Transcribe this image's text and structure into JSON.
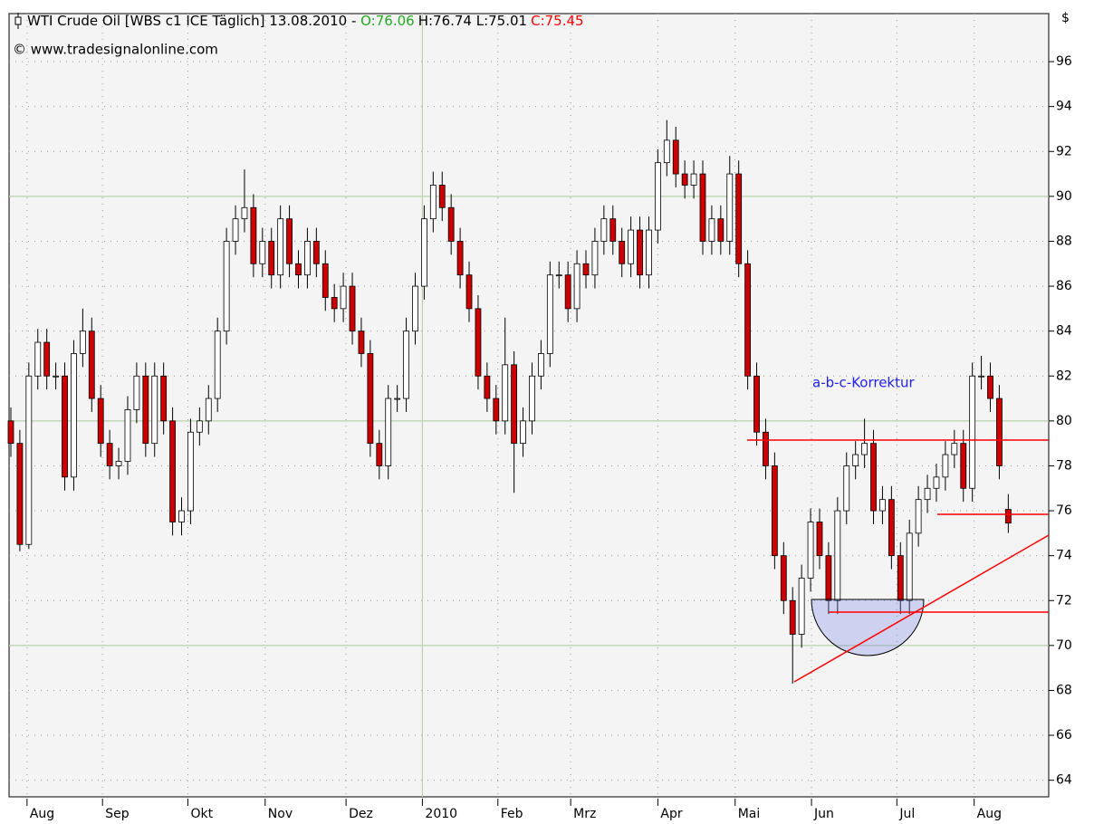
{
  "chart_data": {
    "type": "candlestick",
    "title": "WTI Crude Oil [WBS c1 ICE  Täglich] 13.08.2010 - ",
    "quote": {
      "open": "O:76.06",
      "high_low": "H:76.74 L:75.01",
      "close": "C:75.45"
    },
    "subtitle": "© www.tradesignalonline.com",
    "y_axis_label": "$",
    "annotation": "a-b-c-Korrektur",
    "up_color": "#ffffff",
    "down_color": "#cc0000",
    "open": [
      80,
      79,
      74.5,
      82,
      83.5,
      82,
      82,
      77.5,
      83,
      84,
      81,
      79,
      78,
      78.2,
      80.5,
      82,
      79,
      82,
      80,
      75.5,
      76,
      79.5,
      80,
      81,
      84,
      88,
      89,
      89.5,
      87,
      88,
      86.5,
      89,
      87,
      86.5,
      88,
      87,
      85.5,
      85,
      86,
      84,
      83,
      79,
      78,
      81,
      81,
      84,
      86,
      89,
      90.5,
      89.5,
      88,
      86.5,
      85,
      82,
      81,
      80,
      82.5,
      79,
      80,
      82,
      83,
      86.5,
      86.5,
      85,
      87,
      86.5,
      88,
      89,
      88,
      87,
      88.5,
      86.5,
      88.5,
      91.5,
      92.5,
      91,
      90.5,
      91,
      88,
      89,
      88,
      91,
      87,
      82,
      79.5,
      78,
      74,
      72,
      70.5,
      73,
      75.5,
      74,
      72,
      76,
      78,
      78.5,
      79,
      76,
      76.5,
      74,
      72,
      75,
      76.5,
      77,
      77.5,
      78.5,
      79,
      77,
      82,
      82,
      81,
      76.06
    ],
    "high": [
      80.6,
      79.6,
      82.6,
      84.1,
      84.1,
      82.6,
      82.6,
      83.6,
      85.0,
      84.6,
      81.6,
      79.6,
      78.8,
      81.1,
      82.6,
      82.6,
      82.6,
      82.6,
      80.6,
      76.6,
      80.1,
      80.6,
      81.6,
      84.6,
      88.6,
      89.6,
      91.2,
      90.1,
      88.6,
      88.6,
      89.6,
      89.6,
      87.6,
      88.6,
      88.6,
      87.6,
      86.1,
      86.6,
      86.6,
      84.6,
      83.6,
      79.6,
      81.6,
      81.6,
      84.6,
      86.6,
      89.6,
      91.1,
      91.1,
      90.1,
      88.6,
      87.1,
      85.6,
      82.6,
      81.6,
      84.6,
      83.1,
      80.6,
      82.6,
      83.6,
      87.1,
      87.1,
      87.1,
      87.6,
      87.6,
      88.6,
      89.6,
      89.6,
      88.6,
      89.1,
      89.1,
      89.1,
      92.1,
      93.4,
      93.1,
      91.6,
      91.6,
      91.6,
      89.6,
      89.6,
      91.8,
      91.6,
      87.6,
      82.6,
      80.1,
      78.6,
      74.6,
      72.6,
      73.6,
      76.1,
      76.1,
      74.6,
      76.6,
      78.6,
      79.1,
      80.1,
      79.6,
      77.1,
      77.1,
      74.6,
      75.6,
      77.1,
      77.6,
      78.1,
      79.1,
      79.6,
      79.6,
      82.6,
      82.9,
      82.6,
      81.6,
      76.74
    ],
    "low": [
      78.4,
      74.2,
      74.3,
      81.4,
      81.4,
      81.4,
      76.9,
      76.9,
      82.4,
      80.4,
      78.4,
      77.4,
      77.4,
      77.6,
      79.9,
      78.4,
      78.4,
      79.4,
      74.9,
      74.9,
      75.4,
      78.9,
      79.4,
      80.4,
      83.4,
      87.4,
      88.4,
      86.4,
      86.4,
      85.9,
      85.9,
      86.4,
      85.9,
      85.9,
      86.4,
      84.9,
      84.4,
      84.4,
      83.4,
      82.4,
      78.4,
      77.4,
      77.4,
      80.4,
      80.4,
      83.4,
      85.4,
      88.4,
      88.9,
      87.4,
      85.9,
      84.4,
      81.4,
      80.4,
      79.4,
      79.4,
      76.8,
      78.4,
      79.4,
      81.4,
      82.4,
      85.9,
      84.4,
      84.4,
      85.9,
      85.9,
      87.4,
      87.4,
      86.4,
      86.4,
      85.9,
      85.9,
      87.9,
      90.9,
      90.4,
      89.9,
      89.9,
      87.4,
      87.4,
      87.4,
      87.4,
      86.4,
      81.4,
      78.9,
      77.4,
      73.4,
      71.4,
      68.3,
      69.9,
      72.4,
      73.4,
      71.4,
      71.4,
      75.4,
      77.4,
      77.9,
      75.4,
      75.4,
      73.4,
      71.4,
      71.4,
      74.4,
      75.9,
      76.4,
      76.9,
      77.9,
      76.4,
      76.4,
      81.4,
      80.4,
      77.4,
      75.01
    ],
    "close": [
      79,
      74.5,
      82,
      83.5,
      82,
      82,
      77.5,
      83,
      84,
      81,
      79,
      78,
      78.2,
      80.5,
      82,
      79,
      82,
      80,
      75.5,
      76,
      79.5,
      80,
      81,
      84,
      88,
      89,
      89.5,
      87,
      88,
      86.5,
      89,
      87,
      86.5,
      88,
      87,
      85.5,
      85,
      86,
      84,
      83,
      79,
      78,
      81,
      81,
      84,
      86,
      89,
      90.5,
      89.5,
      88,
      86.5,
      85,
      82,
      81,
      80,
      82.5,
      79,
      80,
      82,
      83,
      86.5,
      86.5,
      85,
      87,
      86.5,
      88,
      89,
      88,
      87,
      88.5,
      86.5,
      88.5,
      91.5,
      92.5,
      91,
      90.5,
      91,
      88,
      89,
      88,
      91,
      87,
      82,
      79.5,
      78,
      74,
      72,
      70.5,
      73,
      75.5,
      74,
      72,
      76,
      78,
      78.5,
      79,
      76,
      76.5,
      74,
      72,
      75,
      76.5,
      77,
      77.5,
      78.5,
      79,
      77,
      82,
      82,
      81,
      78,
      75.45
    ],
    "xlim": [
      -0.2,
      115.5
    ],
    "xticks": [
      {
        "value": 1.8,
        "label": "Aug"
      },
      {
        "value": 10.2,
        "label": "Sep"
      },
      {
        "value": 19.7,
        "label": "Okt"
      },
      {
        "value": 28.3,
        "label": "Nov"
      },
      {
        "value": 37.3,
        "label": "Dez"
      },
      {
        "value": 45.8,
        "label": "2010"
      },
      {
        "value": 54.2,
        "label": "Feb"
      },
      {
        "value": 62.3,
        "label": "Mrz"
      },
      {
        "value": 72,
        "label": "Apr"
      },
      {
        "value": 80.6,
        "label": "Mai"
      },
      {
        "value": 89.1,
        "label": "Jun"
      },
      {
        "value": 98.6,
        "label": "Jul"
      },
      {
        "value": 107.2,
        "label": "Aug"
      }
    ],
    "ylim": [
      63.26,
      98.14
    ],
    "yticks": [
      64,
      66,
      68,
      70,
      72,
      74,
      76,
      78,
      80,
      82,
      84,
      86,
      88,
      90,
      92,
      94,
      96
    ],
    "grid": true
  }
}
